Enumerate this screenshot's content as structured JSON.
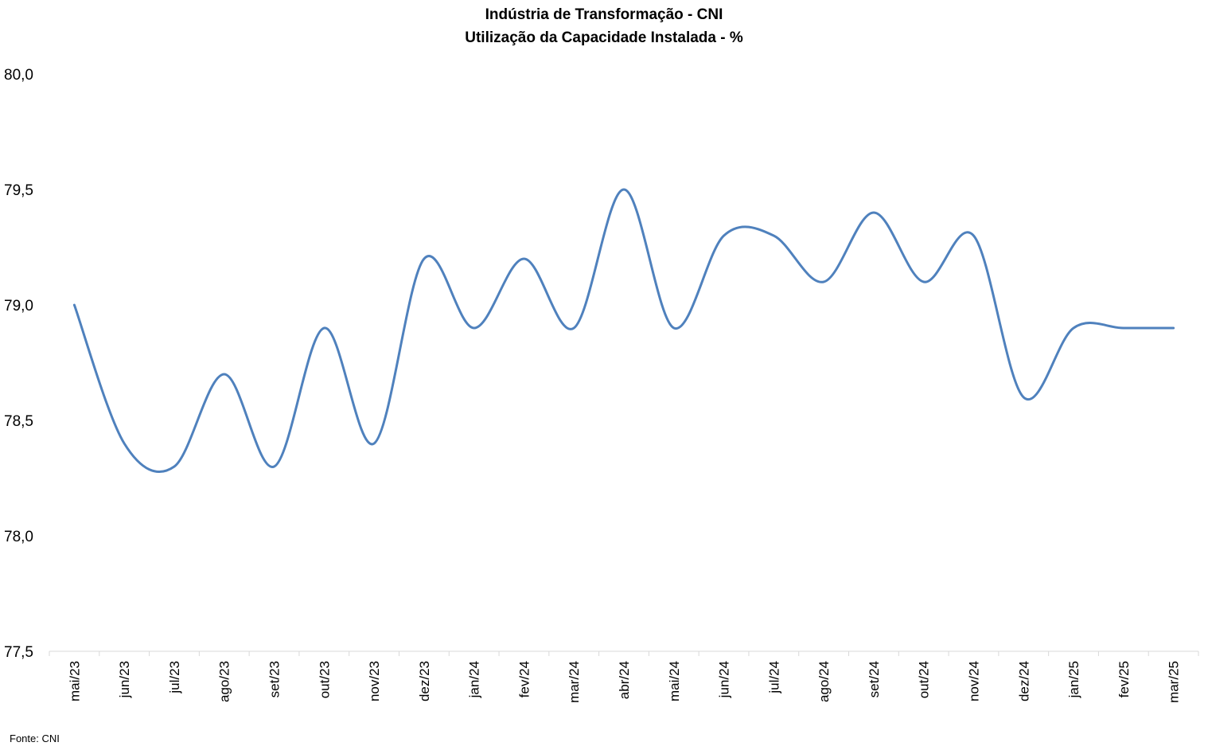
{
  "chart_data": {
    "type": "line",
    "title": "Indústria de Transformação - CNI",
    "subtitle": "Utilização da Capacidade Instalada - %",
    "xlabel": "",
    "ylabel": "",
    "categories": [
      "mai/23",
      "jun/23",
      "jul/23",
      "ago/23",
      "set/23",
      "out/23",
      "nov/23",
      "dez/23",
      "jan/24",
      "fev/24",
      "mar/24",
      "abr/24",
      "mai/24",
      "jun/24",
      "jul/24",
      "ago/24",
      "set/24",
      "out/24",
      "nov/24",
      "dez/24",
      "jan/25",
      "fev/25",
      "mar/25"
    ],
    "series": [
      {
        "values": [
          79.0,
          78.4,
          78.3,
          78.7,
          78.3,
          78.9,
          78.4,
          79.2,
          78.9,
          79.2,
          78.9,
          79.5,
          78.9,
          79.3,
          79.3,
          79.1,
          79.4,
          79.1,
          79.3,
          78.6,
          78.9,
          78.9,
          78.9
        ],
        "color": "#4F81BD"
      }
    ],
    "ylim": [
      77.5,
      80.0
    ],
    "yticks": [
      "80,0",
      "79,5",
      "79,0",
      "78,5",
      "78,0",
      "77,5"
    ],
    "ytick_values": [
      80.0,
      79.5,
      79.0,
      78.5,
      78.0,
      77.5
    ],
    "grid": false,
    "legend": "none",
    "smooth": true,
    "source": "Fonte: CNI"
  }
}
